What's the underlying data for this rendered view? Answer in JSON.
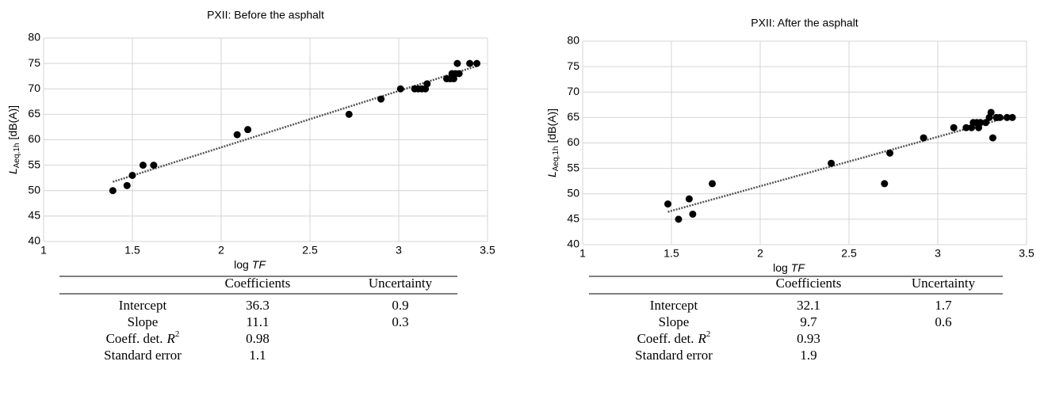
{
  "chart_data": [
    {
      "type": "scatter",
      "title": "PXII: Before the asphalt",
      "x_label": [
        "log",
        "TF"
      ],
      "y_label": [
        "L",
        "Aeq,1h",
        "[dB(A)]"
      ],
      "color": "#000000",
      "trend_color": "#555555",
      "grid": true,
      "xlim": [
        1,
        3.5
      ],
      "xticks": [
        1,
        1.5,
        2,
        2.5,
        3,
        3.5
      ],
      "ylim": [
        40,
        80
      ],
      "yticks": [
        40,
        45,
        50,
        55,
        60,
        65,
        70,
        75,
        80
      ],
      "x": [
        1.39,
        1.47,
        1.5,
        1.56,
        1.62,
        2.09,
        2.15,
        2.72,
        2.9,
        3.01,
        3.09,
        3.11,
        3.13,
        3.15,
        3.16,
        3.27,
        3.29,
        3.3,
        3.31,
        3.32,
        3.33,
        3.34,
        3.4,
        3.44
      ],
      "values": [
        50,
        51,
        53,
        55,
        55,
        61,
        62,
        65,
        68,
        70,
        70,
        70,
        70,
        70,
        71,
        72,
        72,
        73,
        72,
        73,
        75,
        73,
        75,
        75
      ],
      "table": {
        "columns": [
          "Coefficients",
          "Uncertainty"
        ],
        "rows": [
          {
            "label": [
              "Intercept"
            ],
            "values": [
              36.3,
              0.9
            ]
          },
          {
            "label": [
              "Slope"
            ],
            "values": [
              11.1,
              0.3
            ]
          },
          {
            "label": [
              "Coeff. det.",
              "R",
              "2"
            ],
            "values": [
              0.98
            ]
          },
          {
            "label": [
              "Standard error"
            ],
            "values": [
              1.1
            ]
          }
        ]
      }
    },
    {
      "type": "scatter",
      "title": "PXII: After the asphalt",
      "x_label": [
        "log",
        "TF"
      ],
      "y_label": [
        "L",
        "Aeq,1h",
        "[dB(A)]"
      ],
      "color": "#000000",
      "trend_color": "#555555",
      "grid": true,
      "xlim": [
        1,
        3.5
      ],
      "xticks": [
        1,
        1.5,
        2,
        2.5,
        3,
        3.5
      ],
      "ylim": [
        40,
        80
      ],
      "yticks": [
        40,
        45,
        50,
        55,
        60,
        65,
        70,
        75,
        80
      ],
      "x": [
        1.48,
        1.54,
        1.6,
        1.62,
        1.73,
        2.4,
        2.7,
        2.73,
        2.92,
        3.09,
        3.16,
        3.19,
        3.2,
        3.22,
        3.23,
        3.24,
        3.27,
        3.29,
        3.3,
        3.31,
        3.33,
        3.35,
        3.39,
        3.42
      ],
      "values": [
        48,
        45,
        49,
        46,
        52,
        56,
        52,
        58,
        61,
        63,
        63,
        63,
        64,
        64,
        63,
        64,
        64,
        65,
        66,
        61,
        65,
        65,
        65,
        65
      ],
      "table": {
        "columns": [
          "Coefficients",
          "Uncertainty"
        ],
        "rows": [
          {
            "label": [
              "Intercept"
            ],
            "values": [
              32.1,
              1.7
            ]
          },
          {
            "label": [
              "Slope"
            ],
            "values": [
              9.7,
              0.6
            ]
          },
          {
            "label": [
              "Coeff. det.",
              "R",
              "2"
            ],
            "values": [
              0.93
            ]
          },
          {
            "label": [
              "Standard error"
            ],
            "values": [
              1.9
            ]
          }
        ]
      }
    }
  ]
}
